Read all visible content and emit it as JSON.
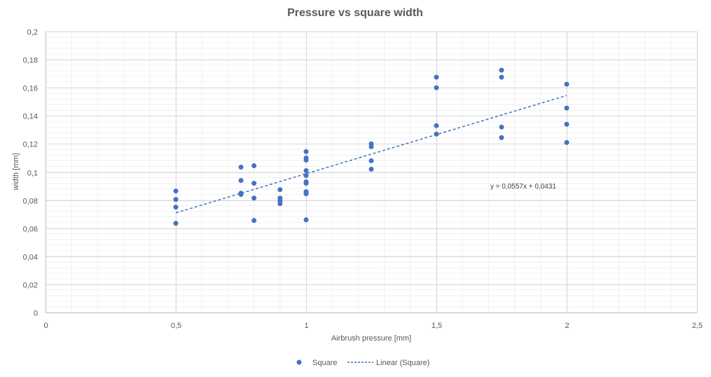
{
  "chart_data": {
    "type": "scatter",
    "title": "Pressure vs square width",
    "xlabel": "Airbrush pressure [mm]",
    "ylabel": "width [mm]",
    "xlim": [
      0,
      2.5
    ],
    "ylim": [
      0,
      0.2
    ],
    "x_ticks": [
      0,
      0.5,
      1,
      1.5,
      2,
      2.5
    ],
    "x_tick_labels": [
      "0",
      "0,5",
      "1",
      "1,5",
      "2",
      "2,5"
    ],
    "y_ticks": [
      0,
      0.02,
      0.04,
      0.06,
      0.08,
      0.1,
      0.12,
      0.14,
      0.16,
      0.18,
      0.2
    ],
    "y_tick_labels": [
      "0",
      "0,02",
      "0,04",
      "0,06",
      "0,08",
      "0,1",
      "0,12",
      "0,14",
      "0,16",
      "0,18",
      "0,2"
    ],
    "grid": true,
    "legend_position": "bottom",
    "series": [
      {
        "name": "Square",
        "color": "#4472C4",
        "points": [
          [
            0.5,
            0.0865
          ],
          [
            0.5,
            0.0805
          ],
          [
            0.5,
            0.075
          ],
          [
            0.5,
            0.0635
          ],
          [
            0.75,
            0.1035
          ],
          [
            0.75,
            0.094
          ],
          [
            0.75,
            0.085
          ],
          [
            0.75,
            0.084
          ],
          [
            0.8,
            0.1045
          ],
          [
            0.8,
            0.092
          ],
          [
            0.8,
            0.0815
          ],
          [
            0.8,
            0.0655
          ],
          [
            0.9,
            0.0875
          ],
          [
            0.9,
            0.0815
          ],
          [
            0.9,
            0.0795
          ],
          [
            0.9,
            0.0775
          ],
          [
            1.0,
            0.1145
          ],
          [
            1.0,
            0.11
          ],
          [
            1.0,
            0.1085
          ],
          [
            1.0,
            0.101
          ],
          [
            1.0,
            0.0975
          ],
          [
            1.0,
            0.093
          ],
          [
            1.0,
            0.092
          ],
          [
            1.0,
            0.086
          ],
          [
            1.0,
            0.0845
          ],
          [
            1.0,
            0.066
          ],
          [
            1.25,
            0.12
          ],
          [
            1.25,
            0.118
          ],
          [
            1.25,
            0.108
          ],
          [
            1.25,
            0.102
          ],
          [
            1.5,
            0.1675
          ],
          [
            1.5,
            0.16
          ],
          [
            1.5,
            0.133
          ],
          [
            1.5,
            0.127
          ],
          [
            1.75,
            0.1725
          ],
          [
            1.75,
            0.1675
          ],
          [
            1.75,
            0.132
          ],
          [
            1.75,
            0.1245
          ],
          [
            2.0,
            0.1625
          ],
          [
            2.0,
            0.1455
          ],
          [
            2.0,
            0.134
          ],
          [
            2.0,
            0.121
          ]
        ]
      }
    ],
    "trendline": {
      "name": "Linear (Square)",
      "color": "#4472C4",
      "style": "dashed",
      "slope": 0.0557,
      "intercept": 0.0431,
      "x_range": [
        0.5,
        2.0
      ],
      "equation": "y = 0,0557x + 0,0431"
    },
    "legend": [
      {
        "label": "Square",
        "marker": "dot"
      },
      {
        "label": "Linear (Square)",
        "marker": "dashed-line"
      }
    ]
  }
}
